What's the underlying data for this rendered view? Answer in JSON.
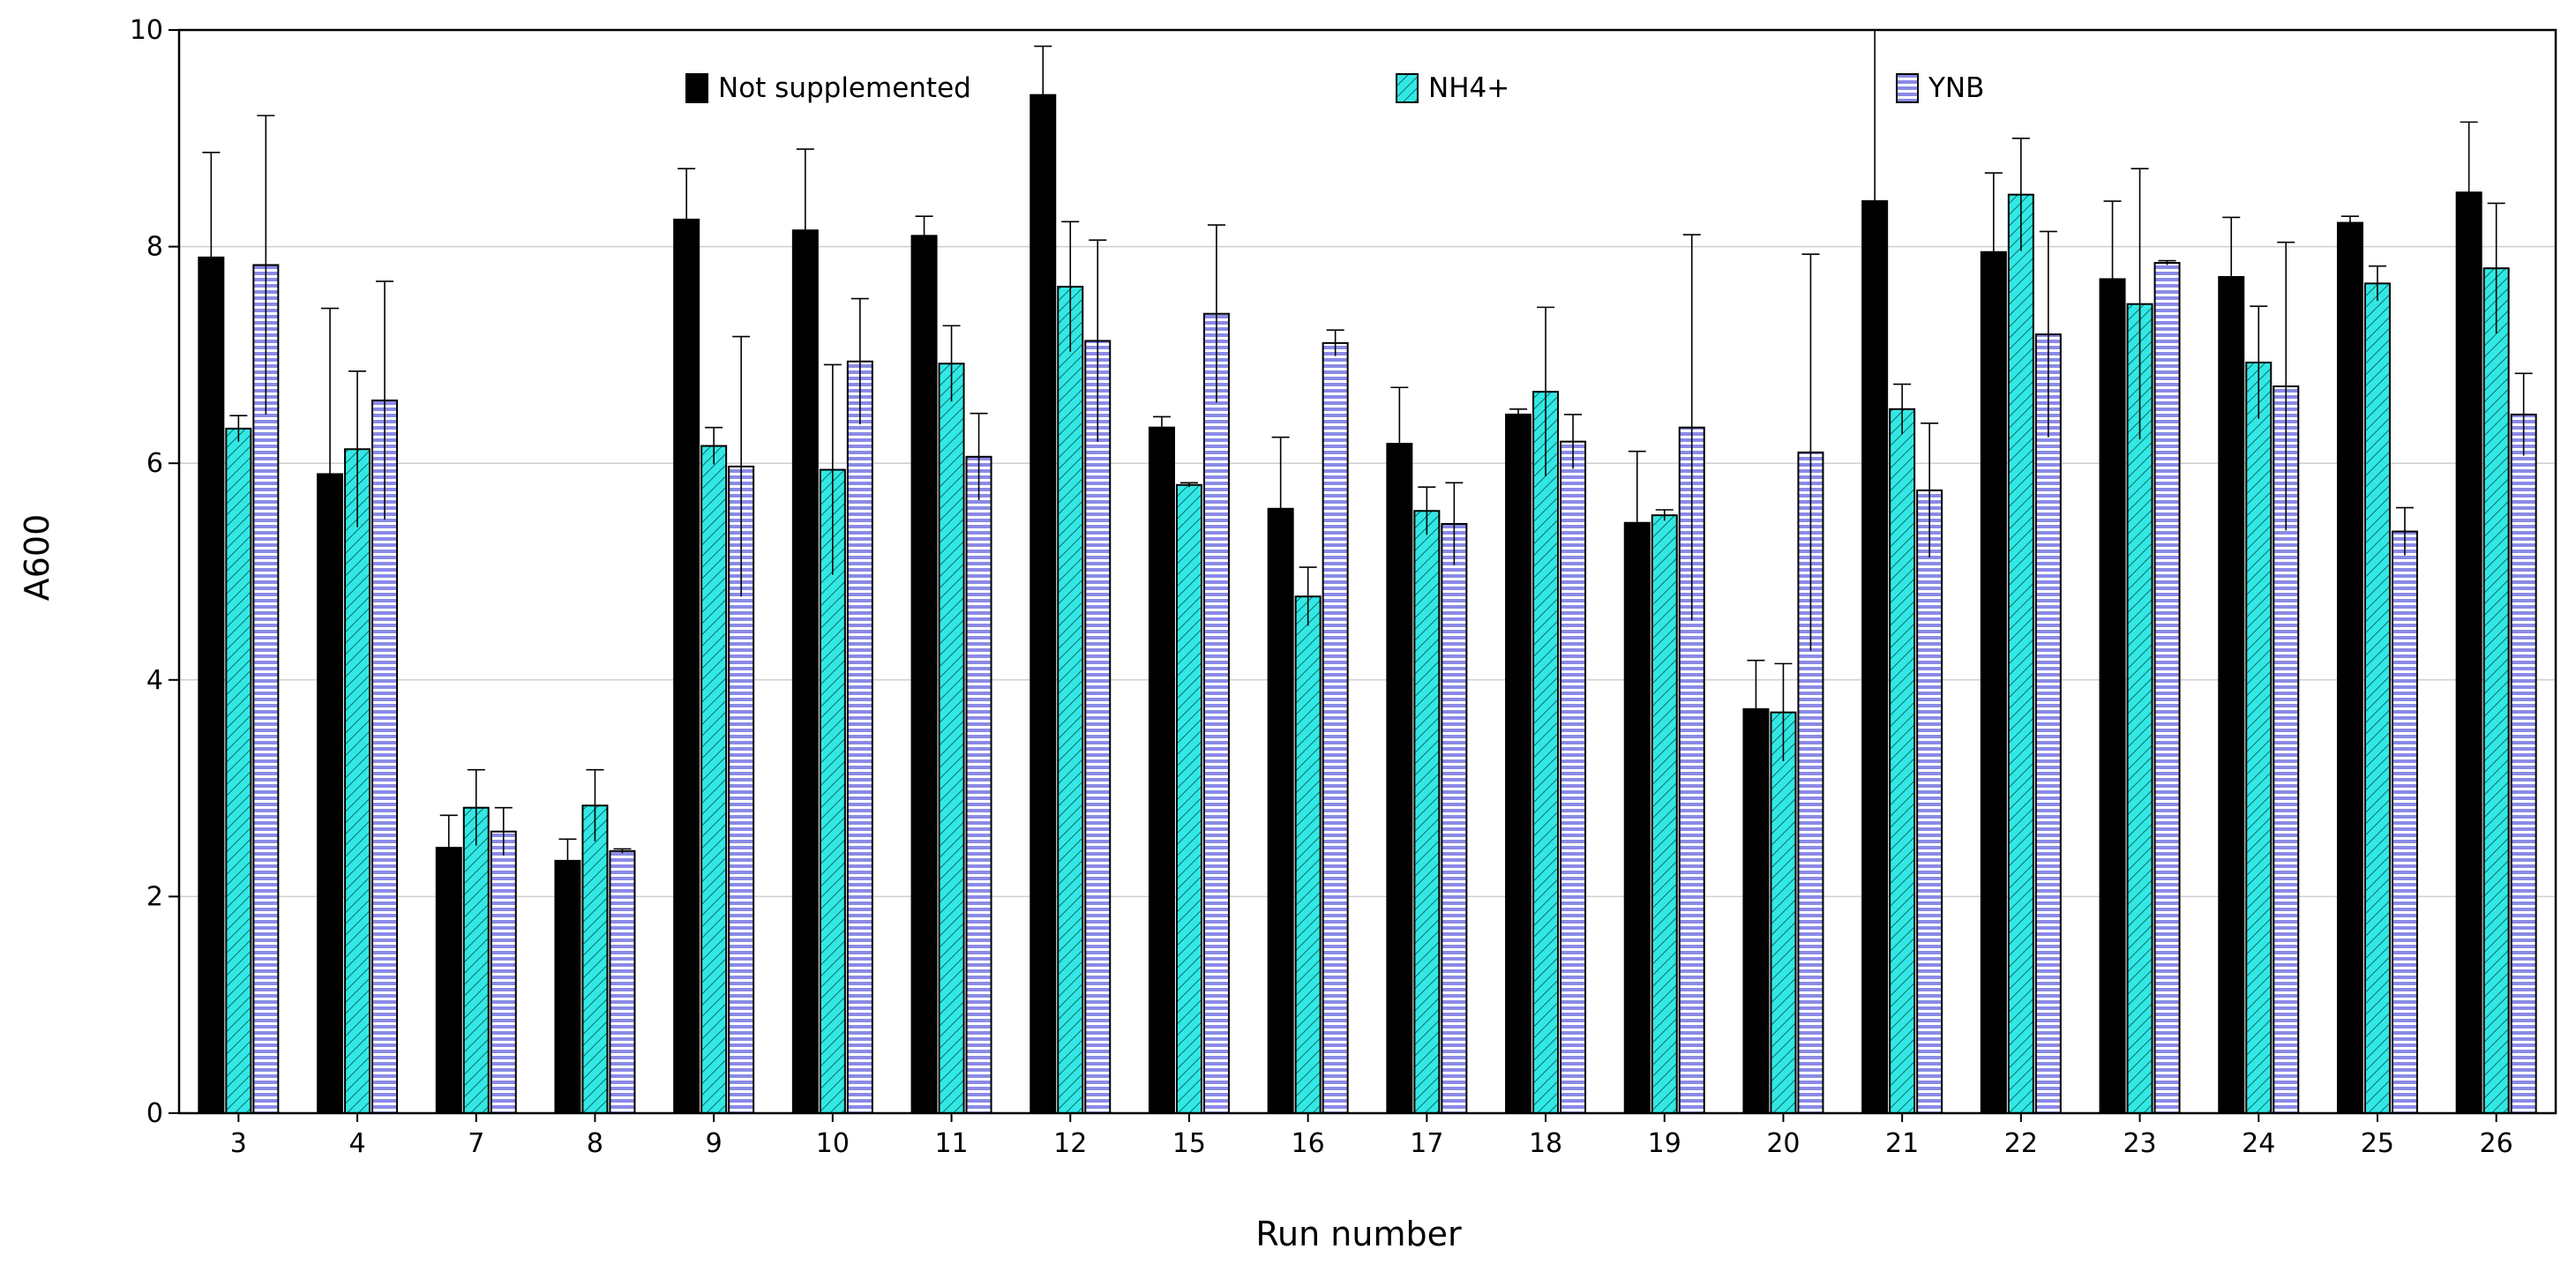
{
  "chart_data": {
    "type": "bar",
    "title": "",
    "xlabel": "Run number",
    "ylabel": "A600",
    "ylim": [
      0,
      10
    ],
    "yticks": [
      0,
      2,
      4,
      6,
      8,
      10
    ],
    "grid": "horizontal",
    "legend_position": "top",
    "categories": [
      "3",
      "4",
      "7",
      "8",
      "9",
      "10",
      "11",
      "12",
      "15",
      "16",
      "17",
      "18",
      "19",
      "20",
      "21",
      "22",
      "23",
      "24",
      "25",
      "26"
    ],
    "series": [
      {
        "name": "Not supplemented",
        "color": "#000000",
        "pattern": "solid",
        "values": [
          7.9,
          5.9,
          2.45,
          2.33,
          8.25,
          8.15,
          8.1,
          9.4,
          6.33,
          5.58,
          6.18,
          6.45,
          5.45,
          3.73,
          8.42,
          7.95,
          7.7,
          7.72,
          8.22,
          8.5
        ],
        "errors": [
          0.97,
          1.53,
          0.3,
          0.2,
          0.47,
          0.75,
          0.18,
          0.45,
          0.1,
          0.66,
          0.52,
          0.05,
          0.66,
          0.45,
          2.15,
          0.73,
          0.72,
          0.55,
          0.06,
          0.65
        ]
      },
      {
        "name": "NH4+",
        "color": "#33e8e4",
        "pattern": "diagonal",
        "values": [
          6.32,
          6.13,
          2.82,
          2.84,
          6.16,
          5.94,
          6.92,
          7.63,
          5.8,
          4.77,
          5.56,
          6.66,
          5.52,
          3.7,
          6.5,
          8.48,
          7.47,
          6.93,
          7.66,
          7.8
        ],
        "errors": [
          0.12,
          0.72,
          0.35,
          0.33,
          0.17,
          0.97,
          0.35,
          0.6,
          0.02,
          0.27,
          0.22,
          0.78,
          0.05,
          0.45,
          0.23,
          0.52,
          1.25,
          0.52,
          0.16,
          0.6
        ]
      },
      {
        "name": "YNB",
        "color": "#9090e8",
        "pattern": "horizontal",
        "values": [
          7.83,
          6.58,
          2.6,
          2.42,
          5.97,
          6.94,
          6.06,
          7.13,
          7.38,
          7.11,
          5.44,
          6.2,
          6.33,
          6.1,
          5.75,
          7.19,
          7.85,
          6.71,
          5.37,
          6.45
        ],
        "errors": [
          1.38,
          1.1,
          0.22,
          0.02,
          1.2,
          0.58,
          0.4,
          0.93,
          0.82,
          0.12,
          0.38,
          0.25,
          1.78,
          1.83,
          0.62,
          0.95,
          0.02,
          1.33,
          0.22,
          0.38
        ]
      }
    ]
  }
}
